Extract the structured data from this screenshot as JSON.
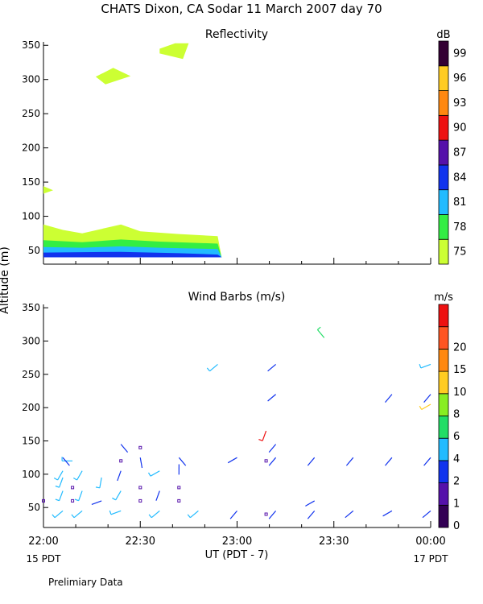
{
  "title": "CHATS Dixon, CA   Sodar   11 March 2007   day  70",
  "ylabel": "Altitude (m)",
  "xlabel": "UT  (PDT - 7)",
  "x_ticks": [
    "22:00",
    "22:30",
    "23:00",
    "23:30",
    "00:00"
  ],
  "x_start_label": "15 PDT",
  "x_end_label": "17 PDT",
  "footer_note": "Prelimiary Data",
  "chart_data": [
    {
      "type": "heatmap",
      "title": "Reflectivity",
      "colorbar_unit": "dB",
      "colorbar_ticks": [
        "75",
        "78",
        "81",
        "84",
        "87",
        "90",
        "93",
        "96",
        "99"
      ],
      "colorbar_colors": [
        "#ccff33",
        "#33ee44",
        "#22bbff",
        "#1133ee",
        "#5511aa",
        "#ee1111",
        "#ff8811",
        "#ffcc22",
        "#330033"
      ],
      "y_ticks": [
        50,
        100,
        150,
        200,
        250,
        300,
        350
      ],
      "ylim": [
        30,
        355
      ],
      "xlim_hours": [
        22,
        24
      ],
      "layers": [
        {
          "level": "75",
          "color": "#ccff33",
          "points": [
            [
              22.0,
              88
            ],
            [
              22.1,
              80
            ],
            [
              22.2,
              75
            ],
            [
              22.4,
              88
            ],
            [
              22.5,
              78
            ],
            [
              22.7,
              74
            ],
            [
              22.9,
              71
            ],
            [
              22.92,
              40
            ],
            [
              22.0,
              40
            ]
          ]
        },
        {
          "level": "78",
          "color": "#33ee44",
          "points": [
            [
              22.0,
              65
            ],
            [
              22.2,
              62
            ],
            [
              22.4,
              66
            ],
            [
              22.6,
              63
            ],
            [
              22.9,
              60
            ],
            [
              22.92,
              40
            ],
            [
              22.0,
              40
            ]
          ]
        },
        {
          "level": "81",
          "color": "#22bbff",
          "points": [
            [
              22.0,
              55
            ],
            [
              22.2,
              54
            ],
            [
              22.4,
              56
            ],
            [
              22.6,
              54
            ],
            [
              22.9,
              52
            ],
            [
              22.92,
              40
            ],
            [
              22.0,
              40
            ]
          ]
        },
        {
          "level": "84",
          "color": "#1133ee",
          "points": [
            [
              22.0,
              47
            ],
            [
              22.4,
              48
            ],
            [
              22.7,
              46
            ],
            [
              22.9,
              44
            ],
            [
              22.92,
              40
            ],
            [
              22.0,
              40
            ]
          ]
        },
        {
          "level": "75",
          "color": "#ccff33",
          "points": [
            [
              22.0,
              144
            ],
            [
              22.05,
              138
            ],
            [
              22.0,
              133
            ]
          ]
        },
        {
          "level": "75",
          "color": "#ccff33",
          "points": [
            [
              22.27,
              304
            ],
            [
              22.36,
              317
            ],
            [
              22.45,
              305
            ],
            [
              22.32,
              293
            ]
          ]
        },
        {
          "level": "75",
          "color": "#ccff33",
          "points": [
            [
              22.6,
              345
            ],
            [
              22.68,
              353
            ],
            [
              22.75,
              353
            ],
            [
              22.72,
              330
            ],
            [
              22.6,
              338
            ]
          ]
        }
      ]
    },
    {
      "type": "scatter",
      "title": "Wind Barbs (m/s)",
      "colorbar_unit": "m/s",
      "colorbar_ticks": [
        "0",
        "1",
        "2",
        "4",
        "6",
        "8",
        "10",
        "15",
        "20"
      ],
      "colorbar_colors": [
        "#330055",
        "#5511aa",
        "#1133ee",
        "#22bbff",
        "#22dd66",
        "#88ee22",
        "#ffcc22",
        "#ff8811",
        "#ff5522",
        "#ee1111"
      ],
      "y_ticks": [
        50,
        100,
        150,
        200,
        250,
        300,
        350
      ],
      "ylim": [
        20,
        355
      ],
      "xlim_hours": [
        22,
        24
      ],
      "barbs": [
        {
          "t": 22.1,
          "z": 45,
          "dir": 230,
          "speed": 3
        },
        {
          "t": 22.2,
          "z": 45,
          "dir": 230,
          "speed": 2
        },
        {
          "t": 22.4,
          "z": 45,
          "dir": 250,
          "speed": 3
        },
        {
          "t": 22.6,
          "z": 45,
          "dir": 230,
          "speed": 3
        },
        {
          "t": 22.8,
          "z": 45,
          "dir": 230,
          "speed": 3
        },
        {
          "t": 23.0,
          "z": 45,
          "dir": 220,
          "speed": 1
        },
        {
          "t": 23.2,
          "z": 45,
          "dir": 220,
          "speed": 1
        },
        {
          "t": 23.4,
          "z": 45,
          "dir": 220,
          "speed": 1
        },
        {
          "t": 23.6,
          "z": 45,
          "dir": 230,
          "speed": 1
        },
        {
          "t": 23.8,
          "z": 45,
          "dir": 240,
          "speed": 1
        },
        {
          "t": 24.0,
          "z": 45,
          "dir": 230,
          "speed": 1
        },
        {
          "t": 22.3,
          "z": 60,
          "dir": 250,
          "speed": 1
        },
        {
          "t": 23.4,
          "z": 60,
          "dir": 240,
          "speed": 1
        },
        {
          "t": 22.1,
          "z": 75,
          "dir": 200,
          "speed": 2
        },
        {
          "t": 22.2,
          "z": 75,
          "dir": 200,
          "speed": 3
        },
        {
          "t": 22.4,
          "z": 75,
          "dir": 210,
          "speed": 3
        },
        {
          "t": 22.6,
          "z": 75,
          "dir": 200,
          "speed": 1
        },
        {
          "t": 22.1,
          "z": 95,
          "dir": 200,
          "speed": 3
        },
        {
          "t": 22.3,
          "z": 95,
          "dir": 190,
          "speed": 3
        },
        {
          "t": 22.1,
          "z": 105,
          "dir": 210,
          "speed": 3
        },
        {
          "t": 22.2,
          "z": 105,
          "dir": 210,
          "speed": 3
        },
        {
          "t": 22.4,
          "z": 105,
          "dir": 200,
          "speed": 1
        },
        {
          "t": 22.6,
          "z": 105,
          "dir": 240,
          "speed": 3
        },
        {
          "t": 22.15,
          "z": 120,
          "dir": 270,
          "speed": 3
        },
        {
          "t": 22.7,
          "z": 115,
          "dir": 180,
          "speed": 1
        },
        {
          "t": 22.1,
          "z": 125,
          "dir": 140,
          "speed": 1
        },
        {
          "t": 22.5,
          "z": 125,
          "dir": 170,
          "speed": 1
        },
        {
          "t": 22.7,
          "z": 125,
          "dir": 140,
          "speed": 1
        },
        {
          "t": 23.0,
          "z": 125,
          "dir": 240,
          "speed": 1
        },
        {
          "t": 23.2,
          "z": 125,
          "dir": 220,
          "speed": 1
        },
        {
          "t": 23.4,
          "z": 125,
          "dir": 220,
          "speed": 1
        },
        {
          "t": 23.6,
          "z": 125,
          "dir": 220,
          "speed": 1
        },
        {
          "t": 23.8,
          "z": 125,
          "dir": 220,
          "speed": 1
        },
        {
          "t": 24.0,
          "z": 125,
          "dir": 220,
          "speed": 1
        },
        {
          "t": 22.4,
          "z": 145,
          "dir": 140,
          "speed": 1
        },
        {
          "t": 23.2,
          "z": 145,
          "dir": 220,
          "speed": 1
        },
        {
          "t": 23.15,
          "z": 165,
          "dir": 200,
          "speed": 20
        },
        {
          "t": 24.0,
          "z": 205,
          "dir": 240,
          "speed": 8
        },
        {
          "t": 23.2,
          "z": 220,
          "dir": 230,
          "speed": 1
        },
        {
          "t": 23.8,
          "z": 220,
          "dir": 220,
          "speed": 1
        },
        {
          "t": 24.0,
          "z": 220,
          "dir": 220,
          "speed": 1
        },
        {
          "t": 22.9,
          "z": 265,
          "dir": 230,
          "speed": 3
        },
        {
          "t": 23.2,
          "z": 265,
          "dir": 230,
          "speed": 1
        },
        {
          "t": 24.0,
          "z": 265,
          "dir": 250,
          "speed": 3
        },
        {
          "t": 23.45,
          "z": 305,
          "dir": 320,
          "speed": 4
        }
      ],
      "calm_points": [
        {
          "t": 22.0,
          "z": 60
        },
        {
          "t": 22.15,
          "z": 60
        },
        {
          "t": 22.5,
          "z": 60
        },
        {
          "t": 22.7,
          "z": 60
        },
        {
          "t": 22.15,
          "z": 80
        },
        {
          "t": 22.5,
          "z": 80
        },
        {
          "t": 22.7,
          "z": 80
        },
        {
          "t": 22.4,
          "z": 120
        },
        {
          "t": 23.15,
          "z": 120
        },
        {
          "t": 22.5,
          "z": 140
        },
        {
          "t": 23.15,
          "z": 40
        }
      ]
    }
  ]
}
